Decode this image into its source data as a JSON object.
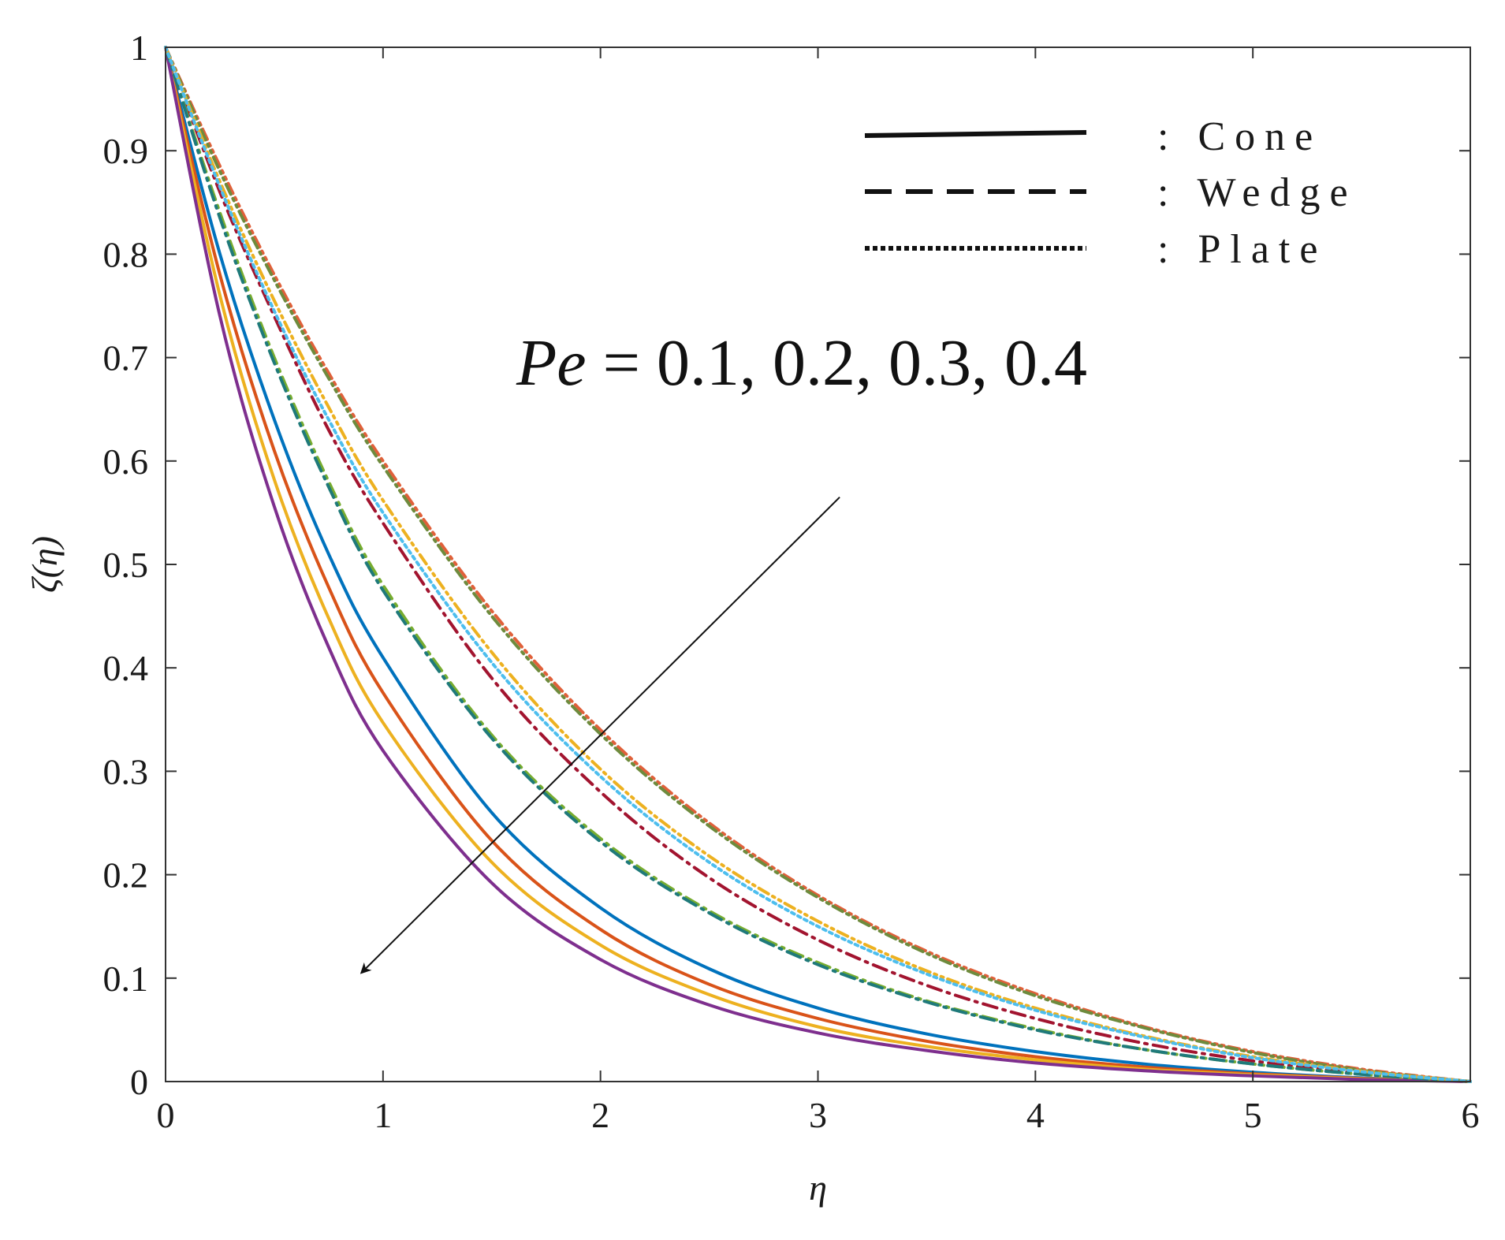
{
  "chart_data": {
    "type": "line",
    "title": "",
    "xlabel": "η",
    "ylabel": "ζ(η)",
    "xlim": [
      0,
      6
    ],
    "ylim": [
      0,
      1
    ],
    "xticks": [
      "0",
      "1",
      "2",
      "3",
      "4",
      "5",
      "6"
    ],
    "yticks": [
      "0",
      "0.1",
      "0.2",
      "0.3",
      "0.4",
      "0.5",
      "0.6",
      "0.7",
      "0.8",
      "0.9",
      "1"
    ],
    "grid": false,
    "legend": {
      "position": "top-right",
      "entries": [
        {
          "style": "solid",
          "label": ": Cone"
        },
        {
          "style": "dashed",
          "label": ": Wedge"
        },
        {
          "style": "dotted",
          "label": ": Plate"
        }
      ]
    },
    "annotation": {
      "text_italic": "Pe",
      "text_rest": " = 0.1, 0.2, 0.3, 0.4",
      "arrow_from": [
        3.1,
        0.565
      ],
      "arrow_to": [
        0.9,
        0.105
      ]
    },
    "x": [
      0,
      0.25,
      0.5,
      0.75,
      1,
      1.5,
      2,
      2.5,
      3,
      3.5,
      4,
      4.5,
      5,
      5.5,
      6
    ],
    "series": [
      {
        "name": "Cone, Pe = 0.1",
        "style": "solid",
        "color": "#0072BD",
        "values": [
          1,
          0.8,
          0.64,
          0.51,
          0.41,
          0.26,
          0.168,
          0.109,
          0.071,
          0.046,
          0.029,
          0.017,
          0.009,
          0.0035,
          0
        ]
      },
      {
        "name": "Cone, Pe = 0.2",
        "style": "solid",
        "color": "#D95319",
        "values": [
          1,
          0.78,
          0.61,
          0.478,
          0.376,
          0.233,
          0.147,
          0.094,
          0.061,
          0.039,
          0.024,
          0.014,
          0.0075,
          0.003,
          0
        ]
      },
      {
        "name": "Cone, Pe = 0.3",
        "style": "solid",
        "color": "#EDB120",
        "values": [
          1,
          0.76,
          0.582,
          0.448,
          0.347,
          0.212,
          0.132,
          0.084,
          0.053,
          0.034,
          0.021,
          0.012,
          0.0065,
          0.0025,
          0
        ]
      },
      {
        "name": "Cone, Pe = 0.4",
        "style": "solid",
        "color": "#7E2F8E",
        "values": [
          1,
          0.74,
          0.556,
          0.42,
          0.32,
          0.192,
          0.118,
          0.074,
          0.047,
          0.03,
          0.018,
          0.0105,
          0.0055,
          0.002,
          0
        ]
      },
      {
        "name": "Wedge, Pe = 0.1",
        "style": "dashdot",
        "color": "#A2142F",
        "values": [
          1,
          0.86,
          0.74,
          0.63,
          0.54,
          0.39,
          0.28,
          0.197,
          0.137,
          0.093,
          0.061,
          0.037,
          0.02,
          0.008,
          0
        ]
      },
      {
        "name": "Wedge, Pe = 0.2",
        "style": "dashdot",
        "color": "#77AC30",
        "values": [
          1,
          0.84,
          0.7,
          0.58,
          0.48,
          0.335,
          0.235,
          0.165,
          0.115,
          0.078,
          0.051,
          0.031,
          0.017,
          0.007,
          0
        ]
      },
      {
        "name": "Wedge, Pe = 0.3",
        "style": "dashdot",
        "color": "#1F7A7A",
        "values": [
          1,
          0.835,
          0.695,
          0.575,
          0.475,
          0.332,
          0.232,
          0.163,
          0.113,
          0.077,
          0.05,
          0.031,
          0.017,
          0.007,
          0
        ]
      },
      {
        "name": "Plate, Pe = 0.1",
        "style": "dashdotdot",
        "color": "#E0603A",
        "values": [
          1,
          0.885,
          0.78,
          0.685,
          0.6,
          0.455,
          0.34,
          0.25,
          0.18,
          0.126,
          0.085,
          0.053,
          0.029,
          0.012,
          0
        ]
      },
      {
        "name": "Plate, Pe = 0.2",
        "style": "dashdotdot",
        "color": "#6E8B3D",
        "values": [
          1,
          0.88,
          0.775,
          0.68,
          0.595,
          0.45,
          0.336,
          0.247,
          0.178,
          0.124,
          0.083,
          0.052,
          0.028,
          0.011,
          0
        ]
      },
      {
        "name": "Plate, Pe = 0.3",
        "style": "dashdotdot",
        "color": "#EDB120",
        "values": [
          1,
          0.87,
          0.755,
          0.652,
          0.562,
          0.415,
          0.302,
          0.218,
          0.155,
          0.107,
          0.071,
          0.044,
          0.024,
          0.01,
          0
        ]
      },
      {
        "name": "Plate, Pe = 0.4",
        "style": "dotted",
        "color": "#4DBEEE",
        "values": [
          1,
          0.865,
          0.745,
          0.64,
          0.55,
          0.405,
          0.295,
          0.212,
          0.15,
          0.104,
          0.069,
          0.043,
          0.023,
          0.0095,
          0
        ]
      }
    ]
  }
}
